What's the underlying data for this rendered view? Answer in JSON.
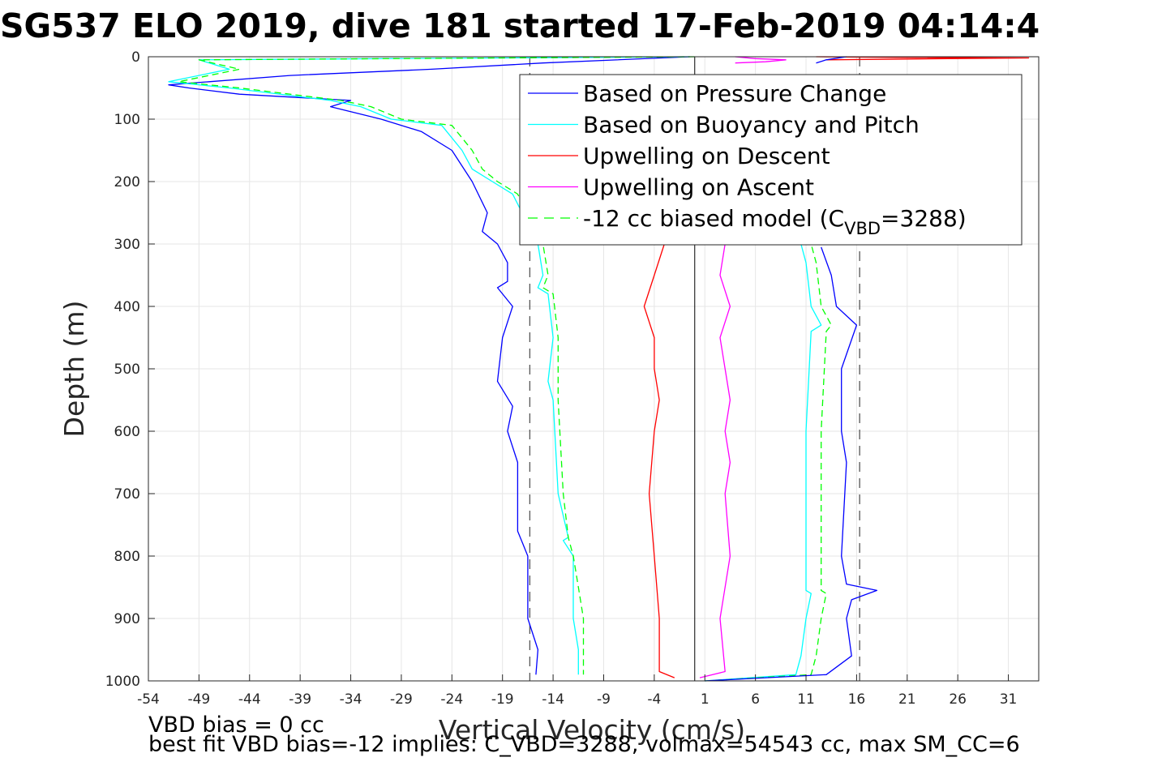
{
  "chart_data": {
    "type": "line",
    "title": "SG537 ELO 2019, dive 181 started 17-Feb-2019 04:14:4",
    "xlabel": "Vertical Velocity (cm/s)",
    "ylabel": "Depth (m)",
    "xlim": [
      -54,
      34
    ],
    "ylim": [
      0,
      1000
    ],
    "y_reversed": true,
    "grid": true,
    "legend_position": "top-right",
    "xticks": [
      -54,
      -49,
      -44,
      -39,
      -34,
      -29,
      -24,
      -19,
      -14,
      -9,
      -4,
      1,
      6,
      11,
      16,
      21,
      26,
      31
    ],
    "yticks": [
      0,
      100,
      200,
      300,
      400,
      500,
      600,
      700,
      800,
      900,
      1000
    ],
    "reference_lines": {
      "solid_x": 0,
      "dashed_x": [
        -16.3,
        16.3
      ]
    },
    "legend": {
      "entries": [
        {
          "label": "Based on Pressure Change",
          "color": "#0000ff",
          "dash": false
        },
        {
          "label": "Based on Buoyancy and Pitch",
          "color": "#00ffff",
          "dash": false
        },
        {
          "label": "Upwelling on Descent",
          "color": "#ff0000",
          "dash": false
        },
        {
          "label": "Upwelling on Ascent",
          "color": "#ff00ff",
          "dash": false
        },
        {
          "label_main": "-12 cc biased model (C",
          "label_sub": "VBD",
          "label_tail": "=3288)",
          "color": "#00ff00",
          "dash": true
        }
      ]
    },
    "series": [
      {
        "name": "Based on Pressure Change",
        "color": "#0000ff",
        "dash": false,
        "x": [
          -0.5,
          -15,
          -26,
          -40,
          -48,
          -52,
          -50,
          -45,
          -34,
          -36,
          -31,
          -27,
          -24,
          -22,
          -20.5,
          -21,
          -19.5,
          -18.5,
          -18.5,
          -19.5,
          -18,
          -19,
          -19.5,
          -18,
          -18.5,
          -17.5,
          -17.5,
          -17.5,
          -17,
          -16.5,
          -16.5,
          -15.5,
          -15.7
        ],
        "y": [
          0,
          10,
          20,
          30,
          40,
          45,
          50,
          60,
          70,
          80,
          100,
          120,
          150,
          200,
          250,
          280,
          300,
          330,
          360,
          370,
          400,
          450,
          520,
          560,
          600,
          650,
          700,
          760,
          780,
          800,
          900,
          950,
          990
        ]
      },
      {
        "name": "Based on Buoyancy and Pitch",
        "color": "#00ffff",
        "dash": false,
        "x": [
          -0.5,
          -49,
          -46,
          -52,
          -46,
          -36,
          -33,
          -30,
          -25,
          -23,
          -22,
          -20,
          -18,
          -15.5,
          -15,
          -15.5,
          -14.5,
          -14,
          -14.5,
          -14,
          -13.5,
          -12.5,
          -13,
          -12,
          -12,
          -11.5,
          -11.5
        ],
        "y": [
          0,
          5,
          20,
          40,
          50,
          70,
          80,
          100,
          110,
          150,
          180,
          200,
          220,
          300,
          350,
          370,
          380,
          450,
          520,
          550,
          700,
          770,
          775,
          800,
          900,
          950,
          990
        ]
      },
      {
        "name": "-12 cc biased model (CVBD=3288)",
        "color": "#00ff00",
        "dash": true,
        "x": [
          0,
          -49,
          -45,
          -51,
          -45,
          -35,
          -32,
          -29,
          -24,
          -22,
          -21,
          -19.5,
          -17.5,
          -15,
          -14.5,
          -15,
          -14,
          -13.5,
          -13.5,
          -13,
          -12.5,
          -12,
          -11.5,
          -11,
          -11,
          -11
        ],
        "y": [
          0,
          5,
          20,
          40,
          50,
          70,
          80,
          100,
          110,
          150,
          180,
          200,
          220,
          300,
          350,
          370,
          380,
          450,
          550,
          700,
          770,
          800,
          850,
          900,
          950,
          990
        ]
      },
      {
        "name": "Upwelling on Descent",
        "color": "#ff0000",
        "dash": false,
        "x": [
          -3,
          -4,
          -5,
          -4,
          -4,
          -3.5,
          -4,
          -4.5,
          -4,
          -3.5,
          -3.5,
          -2
        ],
        "y": [
          300,
          350,
          400,
          450,
          500,
          550,
          600,
          700,
          800,
          900,
          985,
          995
        ]
      },
      {
        "name": "Upwelling on Ascent",
        "color": "#ff00ff",
        "dash": false,
        "x": [
          3,
          2.5,
          3.5,
          2.5,
          3,
          3.5,
          3,
          3.5,
          3,
          3.5,
          2.5,
          3,
          0.5
        ],
        "y": [
          300,
          350,
          400,
          450,
          500,
          550,
          600,
          650,
          700,
          800,
          900,
          985,
          995
        ]
      },
      {
        "name": "Upwelling on Descent (top)",
        "color": "#ff0000",
        "dash": false,
        "x": [
          12,
          20,
          33,
          25,
          13
        ],
        "y": [
          0,
          1,
          2,
          3,
          5
        ]
      },
      {
        "name": "Upwelling on Ascent (top)",
        "color": "#ff00ff",
        "dash": false,
        "x": [
          4,
          6,
          9,
          7,
          4
        ],
        "y": [
          0,
          3,
          5,
          8,
          10
        ]
      },
      {
        "name": "Based on Buoyancy and Pitch (ascent)",
        "color": "#00ffff",
        "dash": false,
        "x": [
          1,
          10,
          10.5,
          11,
          11.5,
          11,
          11,
          11,
          11,
          11.5,
          12.5,
          11.5,
          11,
          10.5
        ],
        "y": [
          1000,
          990,
          960,
          900,
          860,
          855,
          800,
          650,
          600,
          440,
          430,
          400,
          330,
          300
        ]
      },
      {
        "name": "-12 cc biased model (ascent)",
        "color": "#00ff00",
        "dash": true,
        "x": [
          1,
          11.5,
          12,
          12.5,
          13,
          12.5,
          12.5,
          12.5,
          12.5,
          13,
          13.5,
          12.5,
          12,
          11.5
        ],
        "y": [
          1000,
          990,
          960,
          900,
          860,
          855,
          800,
          650,
          600,
          440,
          430,
          400,
          330,
          300
        ]
      },
      {
        "name": "Based on Pressure Change (ascent)",
        "color": "#0000ff",
        "dash": false,
        "x": [
          1,
          13,
          15.5,
          15,
          15.5,
          18,
          15,
          14.5,
          15,
          14.5,
          14.5,
          16,
          14,
          13.5,
          12.5
        ],
        "y": [
          1000,
          990,
          960,
          900,
          870,
          855,
          845,
          800,
          650,
          600,
          500,
          430,
          400,
          350,
          305
        ]
      },
      {
        "name": "Based on Pressure Change (ascent top)",
        "color": "#0000ff",
        "dash": false,
        "x": [
          12,
          13,
          15
        ],
        "y": [
          10,
          5,
          0
        ]
      }
    ]
  },
  "notes": {
    "line1": "VBD bias = 0 cc",
    "line2": "best fit VBD bias=-12 implies: C_VBD=3288, volmax=54543 cc, max SM_CC=6"
  }
}
